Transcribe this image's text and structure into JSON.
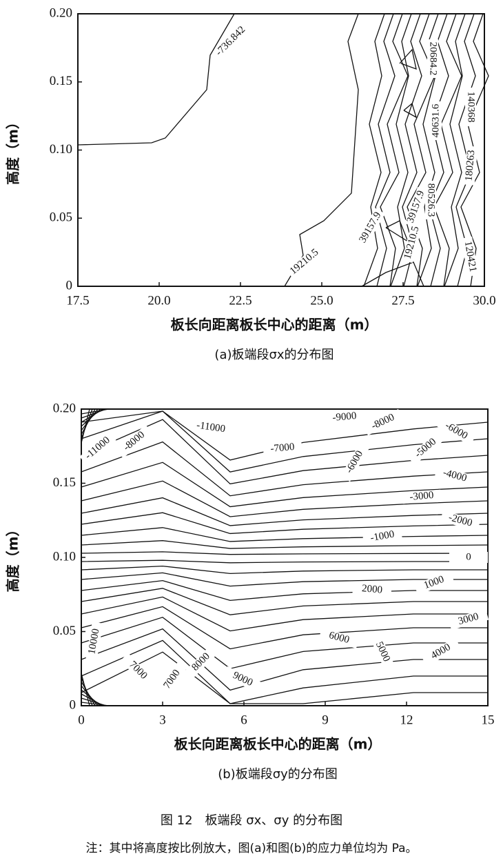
{
  "figure_caption": "图 12　板端段 σx、σy 的分布图",
  "note": "注：其中将高度按比例放大，图(a)和图(b)的应力单位均为 Pa。",
  "chart_data": [
    {
      "type": "contour",
      "xlabel": "板长向距离板长中心的距离（m）",
      "ylabel": "高度（m）",
      "caption": "(a)板端段σx的分布图",
      "xlim": [
        17.5,
        30
      ],
      "ylim": [
        0,
        0.2
      ],
      "xticks": [
        17.5,
        {
          "value": 20,
          "label": "20.0"
        },
        22.5,
        {
          "value": 25,
          "label": "25.0"
        },
        27.5,
        {
          "value": 30,
          "label": "30.0"
        }
      ],
      "yticks": [
        0,
        0.05,
        {
          "value": 0.1,
          "label": "0.10"
        },
        0.15,
        {
          "value": 0.2,
          "label": "0.20"
        }
      ],
      "levels": [
        -736.842,
        20684.2,
        140368,
        40631.6,
        180263,
        80526.3,
        39157.9,
        39157.9,
        19210.5,
        19210.5,
        120421
      ]
    },
    {
      "type": "contour",
      "xlabel": "板长向距离板长中心的距离（m）",
      "ylabel": "高度（m）",
      "caption": "(b)板端段σy的分布图",
      "xlim": [
        0,
        15
      ],
      "ylim": [
        0,
        0.2
      ],
      "xticks": [
        0,
        3,
        6,
        9,
        12,
        15
      ],
      "yticks": [
        0,
        0.05,
        {
          "value": 0.1,
          "label": "0.10"
        },
        0.15,
        {
          "value": 0.2,
          "label": "0.20"
        }
      ],
      "levels": [
        -11000,
        -11000,
        -9000,
        -8000,
        -8000,
        -7000,
        -6000,
        -6000,
        -5000,
        -4000,
        -3000,
        -2000,
        -1000,
        0,
        1000,
        2000,
        3000,
        4000,
        5000,
        6000,
        7000,
        7000,
        8000,
        9000,
        10000
      ]
    }
  ]
}
